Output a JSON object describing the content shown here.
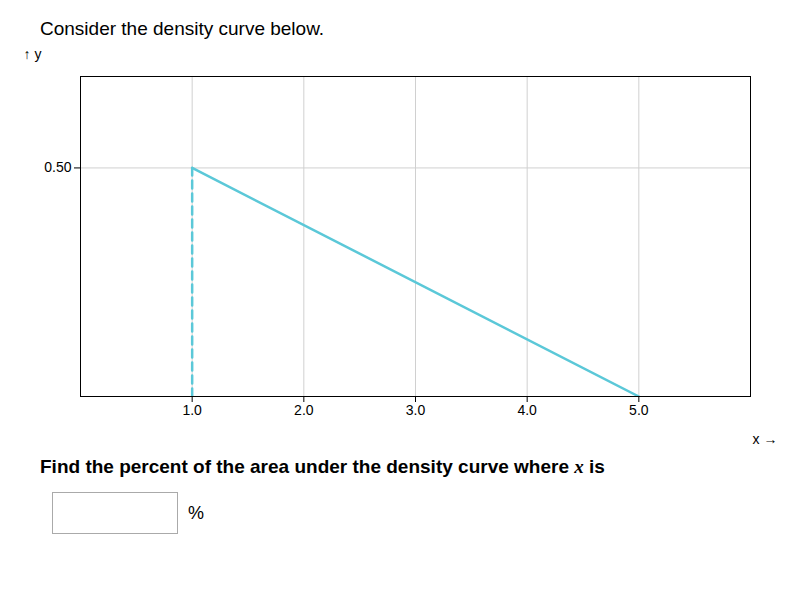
{
  "chart_data": {
    "type": "line",
    "title": "Consider the density curve below.",
    "xlabel": "x",
    "ylabel": "y",
    "xlim": [
      0,
      6.0
    ],
    "ylim": [
      0,
      0.7
    ],
    "xticks": [
      1,
      2,
      3,
      4,
      5
    ],
    "yticks": [
      0.5
    ],
    "grid": true,
    "series": [
      {
        "x": [
          1,
          5
        ],
        "values": [
          0.5,
          0
        ],
        "color": "#5BC8D8",
        "line_style": "solid"
      },
      {
        "x": [
          1,
          1
        ],
        "values": [
          0,
          0.5
        ],
        "color": "#5BC8D8",
        "line_style": "dashed"
      }
    ],
    "annotations": [
      "Find the percent of the area under the density curve where x is",
      "%"
    ]
  }
}
